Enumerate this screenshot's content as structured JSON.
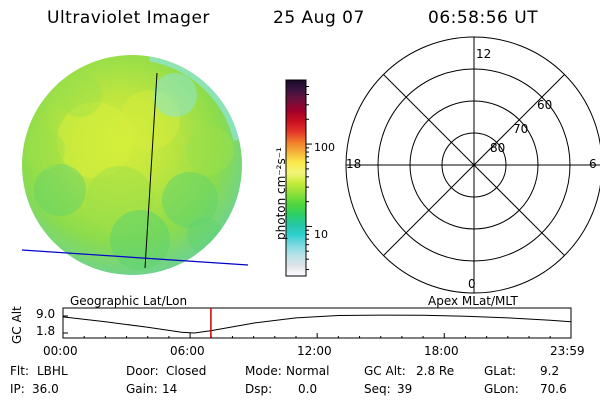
{
  "header": {
    "instrument": "Ultraviolet Imager",
    "date": "25 Aug 07",
    "time": "06:58:56 UT"
  },
  "colorbar": {
    "unit_label": "photon cm⁻²s⁻¹",
    "scale": "log",
    "ticks": [
      "100",
      "10"
    ],
    "colors": [
      "#ffffff",
      "#dfe3ea",
      "#b8e4e8",
      "#7ed9e0",
      "#2fcfd0",
      "#26c7a6",
      "#2dcf62",
      "#52d63c",
      "#8fe03a",
      "#c7ec3a",
      "#f3f57a",
      "#fbea4a",
      "#f5b23c",
      "#f07a2a",
      "#e3342a",
      "#c81020",
      "#a0002a",
      "#70103a",
      "#3c1440",
      "#1a0a2a"
    ]
  },
  "image_panel": {
    "label": "Geographic Lat/Lon",
    "disk_colors": {
      "base": "#9be04a",
      "bright": "#d6ee3c",
      "dim": "#5fd36e",
      "edge": "#8ee6d4"
    },
    "grid_color_meridian": "#000000",
    "grid_color_equator": "#0000cc"
  },
  "polar_panel": {
    "label": "Apex MLat/MLT",
    "mlt_labels": {
      "top": "12",
      "left": "18",
      "right": "6",
      "bottom": "0"
    },
    "mlat_labels": [
      "60",
      "70",
      "80"
    ]
  },
  "orbit_plot": {
    "ylabel": "GC Alt",
    "yticks": [
      "9.0",
      "1.8"
    ],
    "xticks": [
      "00:00",
      "06:00",
      "12:00",
      "18:00",
      "23:59"
    ],
    "marker_time": "06:58:56",
    "marker_color": "#cc0000",
    "trace": [
      {
        "t": 0.0,
        "alt": 8.6
      },
      {
        "t": 2.0,
        "alt": 6.6
      },
      {
        "t": 4.0,
        "alt": 4.2
      },
      {
        "t": 5.6,
        "alt": 2.1
      },
      {
        "t": 6.2,
        "alt": 1.8
      },
      {
        "t": 7.0,
        "alt": 2.8
      },
      {
        "t": 9.0,
        "alt": 6.0
      },
      {
        "t": 11.0,
        "alt": 8.2
      },
      {
        "t": 13.0,
        "alt": 9.2
      },
      {
        "t": 15.0,
        "alt": 9.4
      },
      {
        "t": 17.0,
        "alt": 9.3
      },
      {
        "t": 19.0,
        "alt": 8.9
      },
      {
        "t": 21.0,
        "alt": 8.2
      },
      {
        "t": 23.0,
        "alt": 7.2
      },
      {
        "t": 23.98,
        "alt": 6.6
      }
    ]
  },
  "status": {
    "row1": [
      {
        "label": "Flt:",
        "value": "LBHL"
      },
      {
        "label": "Door:",
        "value": "Closed"
      },
      {
        "label": "Mode:",
        "value": "Normal"
      },
      {
        "label": "GC Alt:",
        "value": "2.8 Re"
      },
      {
        "label": "GLat:",
        "value": "9.2"
      }
    ],
    "row2": [
      {
        "label": "IP:",
        "value": "36.0"
      },
      {
        "label": "Gain:",
        "value": "14"
      },
      {
        "label": "Dsp:",
        "value": "0.0"
      },
      {
        "label": "Seq:",
        "value": "39"
      },
      {
        "label": "GLon:",
        "value": "70.6"
      }
    ]
  }
}
